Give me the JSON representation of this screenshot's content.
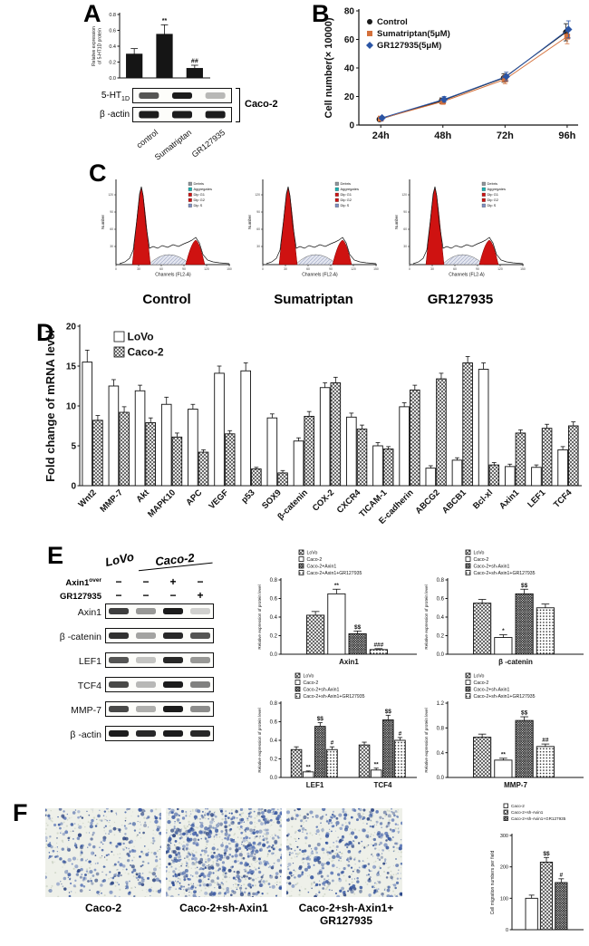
{
  "figure": {
    "background": "#ffffff"
  },
  "panel_labels": {
    "a": "A",
    "b": "B",
    "c": "C",
    "d": "D",
    "e": "E",
    "f": "F"
  },
  "colors": {
    "bar_fill": "#151515",
    "flow_peak_red": "#cf1211",
    "sumatriptan_orange": "#d4703a",
    "migration_blue": "#33549e"
  },
  "panelA": {
    "blot_rows": [
      {
        "name": "5-HT",
        "sub": "1D"
      },
      {
        "name": "β -actin",
        "sub": ""
      }
    ],
    "cell_line": "Caco-2",
    "lanes": [
      "control",
      "Sumatriptan",
      "GR127935"
    ]
  },
  "panelC": {
    "group_labels": [
      "Control",
      "Sumatriptan",
      "GR127935"
    ]
  },
  "panelE": {
    "col_headers": [
      "LoVo",
      "Caco-2"
    ],
    "condition_rows": [
      {
        "label": "Axin1",
        "sup": "over",
        "signs": [
          "−",
          "−",
          "+",
          "−"
        ]
      },
      {
        "label": "GR127935",
        "sup": "",
        "signs": [
          "−",
          "−",
          "−",
          "+"
        ]
      }
    ],
    "blot_rows": [
      "Axin1",
      "β -catenin",
      "LEF1",
      "TCF4",
      "MMP-7",
      "β -actin"
    ]
  },
  "panelF": {
    "image_labels": [
      "Caco-2",
      "Caco-2+sh-Axin1"
    ],
    "image_label3_lines": [
      "Caco-2+sh-Axin1+",
      "GR127935"
    ]
  },
  "chart_data": [
    {
      "id": "chartA",
      "type": "bar",
      "ylabel": "Relative expression\nof 5-HT1D protein",
      "ylim": [
        0,
        0.8
      ],
      "yticks": [
        0,
        0.2,
        0.4,
        0.6,
        0.8
      ],
      "ytick_labels": [
        "0.0",
        "0.2",
        "0.4",
        "0.6",
        "0.8"
      ],
      "categories": [
        "control",
        "Sumatriptan",
        "GR127935"
      ],
      "values": [
        0.3,
        0.55,
        0.12
      ],
      "errors": [
        0.07,
        0.12,
        0.04
      ],
      "annotations": [
        "",
        "**",
        "##"
      ],
      "bar_styles": [
        "solid",
        "solid",
        "solid"
      ]
    },
    {
      "id": "chartB",
      "type": "line",
      "ylabel": "Cell number(× 10000)",
      "ylim": [
        0,
        80
      ],
      "yticks": [
        0,
        20,
        40,
        60,
        80
      ],
      "ytick_labels": [
        "0",
        "20",
        "40",
        "60",
        "80"
      ],
      "x_labels": [
        "24h",
        "48h",
        "72h",
        "96h"
      ],
      "series": [
        {
          "name": "Control",
          "marker": "circle",
          "color": "#1a1a1a",
          "values": [
            4,
            17,
            33,
            65
          ],
          "errors": [
            1,
            2,
            3,
            6
          ]
        },
        {
          "name": "Sumatriptan(5μM)",
          "marker": "square",
          "color": "#d4703a",
          "values": [
            4.5,
            16.5,
            32,
            62
          ],
          "errors": [
            1,
            2,
            3,
            5
          ]
        },
        {
          "name": "GR127935(5μM)",
          "marker": "diamond",
          "color": "#2b55a5",
          "values": [
            5,
            18,
            34,
            67
          ],
          "errors": [
            1,
            2,
            3,
            6
          ]
        }
      ]
    },
    {
      "id": "flow",
      "type": "histogram",
      "plots": [
        "Control",
        "Sumatriptan",
        "GR127935"
      ],
      "xlabel": "Channels (FL2-A)",
      "ylabel": "Number",
      "legend": [
        "Debris",
        "Aggregates",
        "Dip G1",
        "Dip G2",
        "Dip S"
      ]
    },
    {
      "id": "chartD",
      "type": "bar",
      "ylabel": "Fold change of mRNA level",
      "ylim": [
        0,
        20
      ],
      "yticks": [
        0,
        5,
        10,
        15,
        20
      ],
      "ytick_labels": [
        "0",
        "5",
        "10",
        "15",
        "20"
      ],
      "legend_pos": "top-left",
      "categories": [
        "Wnt2",
        "MMP-7",
        "Akt",
        "MAPK10",
        "APC",
        "VEGF",
        "p53",
        "SOX9",
        "β-catenin",
        "COX-2",
        "CXCR4",
        "TICAM-1",
        "E-cadherin",
        "ABCG2",
        "ABCB1",
        "Bcl-xl",
        "Axin1",
        "LEF1",
        "TCF4"
      ],
      "series": [
        {
          "name": "LoVo",
          "style": "open",
          "values": [
            15.5,
            12.5,
            11.9,
            10.2,
            9.6,
            14.1,
            14.4,
            8.5,
            5.6,
            12.3,
            8.6,
            5.0,
            9.9,
            2.2,
            3.2,
            14.6,
            2.4,
            2.3,
            4.5
          ],
          "errors": [
            1.5,
            0.8,
            0.7,
            0.9,
            0.6,
            0.9,
            1.0,
            0.5,
            0.4,
            0.6,
            0.5,
            0.4,
            0.5,
            0.3,
            0.3,
            0.8,
            0.3,
            0.3,
            0.4
          ]
        },
        {
          "name": "Caco-2",
          "style": "hatch",
          "values": [
            8.2,
            9.2,
            7.9,
            6.1,
            4.2,
            6.5,
            2.1,
            1.6,
            8.7,
            12.9,
            7.1,
            4.6,
            12.0,
            13.4,
            15.4,
            2.6,
            6.6,
            7.2,
            7.5
          ],
          "errors": [
            0.6,
            0.7,
            0.6,
            0.5,
            0.3,
            0.4,
            0.2,
            0.3,
            0.6,
            0.7,
            0.5,
            0.3,
            0.6,
            0.7,
            0.8,
            0.3,
            0.4,
            0.5,
            0.5
          ]
        }
      ]
    },
    {
      "id": "chartE1",
      "type": "bar",
      "categories": [
        "Axin1"
      ],
      "ylabel": "Relative expression of protein level",
      "ylim": [
        0,
        0.8
      ],
      "yticks": [
        0,
        0.2,
        0.4,
        0.6,
        0.8
      ],
      "ytick_labels": [
        "0.0",
        "0.2",
        "0.4",
        "0.6",
        "0.8"
      ],
      "series": [
        {
          "name": "LoVo",
          "style": "hatch",
          "values": [
            0.42
          ],
          "errors": [
            0.04
          ],
          "annotations": [
            ""
          ]
        },
        {
          "name": "Caco-2",
          "style": "open",
          "values": [
            0.65
          ],
          "errors": [
            0.05
          ],
          "annotations": [
            "**"
          ]
        },
        {
          "name": "Caco-2+Axin1",
          "style": "hatch2",
          "values": [
            0.22
          ],
          "errors": [
            0.03
          ],
          "annotations": [
            "$$"
          ]
        },
        {
          "name": "Caco-2+Axin1+GR127935",
          "style": "dots",
          "values": [
            0.05
          ],
          "errors": [
            0.01
          ],
          "annotations": [
            "###"
          ]
        }
      ]
    },
    {
      "id": "chartE2",
      "type": "bar",
      "categories": [
        "β -catenin"
      ],
      "ylabel": "Relative expression of protein level",
      "ylim": [
        0,
        0.8
      ],
      "yticks": [
        0,
        0.2,
        0.4,
        0.6,
        0.8
      ],
      "ytick_labels": [
        "0.0",
        "0.2",
        "0.4",
        "0.6",
        "0.8"
      ],
      "series": [
        {
          "name": "LoVo",
          "style": "hatch",
          "values": [
            0.55
          ],
          "errors": [
            0.04
          ],
          "annotations": [
            ""
          ]
        },
        {
          "name": "Caco-2",
          "style": "open",
          "values": [
            0.18
          ],
          "errors": [
            0.03
          ],
          "annotations": [
            "*"
          ]
        },
        {
          "name": "Caco-2+sh-Axin1",
          "style": "hatch2",
          "values": [
            0.65
          ],
          "errors": [
            0.05
          ],
          "annotations": [
            "$$"
          ]
        },
        {
          "name": "Caco-2+sh-Axin1+GR127935",
          "style": "dots",
          "values": [
            0.5
          ],
          "errors": [
            0.04
          ],
          "annotations": [
            ""
          ]
        }
      ]
    },
    {
      "id": "chartE3",
      "type": "bar",
      "categories": [
        "LEF1",
        "TCF4"
      ],
      "ylabel": "Relative expression of protein level",
      "ylim": [
        0,
        0.8
      ],
      "yticks": [
        0,
        0.2,
        0.4,
        0.6,
        0.8
      ],
      "ytick_labels": [
        "0.0",
        "0.2",
        "0.4",
        "0.6",
        "0.8"
      ],
      "series": [
        {
          "name": "LoVo",
          "style": "hatch",
          "values": [
            0.3,
            0.35
          ],
          "errors": [
            0.03,
            0.03
          ],
          "annotations": [
            "",
            ""
          ]
        },
        {
          "name": "Caco-2",
          "style": "open",
          "values": [
            0.06,
            0.08
          ],
          "errors": [
            0.01,
            0.02
          ],
          "annotations": [
            "**",
            "**"
          ]
        },
        {
          "name": "Caco-2+sh-Axin1",
          "style": "hatch2",
          "values": [
            0.55,
            0.62
          ],
          "errors": [
            0.04,
            0.05
          ],
          "annotations": [
            "$$",
            "$$"
          ]
        },
        {
          "name": "Caco-2+sh-Axin1+GR127935",
          "style": "dots",
          "values": [
            0.3,
            0.4
          ],
          "errors": [
            0.03,
            0.03
          ],
          "annotations": [
            "#",
            "#"
          ]
        }
      ]
    },
    {
      "id": "chartE4",
      "type": "bar",
      "categories": [
        "MMP-7"
      ],
      "ylabel": "Relative expression of protein level",
      "ylim": [
        0,
        1.2
      ],
      "yticks": [
        0,
        0.4,
        0.8,
        1.2
      ],
      "ytick_labels": [
        "0.0",
        "0.4",
        "0.8",
        "1.2"
      ],
      "series": [
        {
          "name": "LoVo",
          "style": "hatch",
          "values": [
            0.65
          ],
          "errors": [
            0.05
          ],
          "annotations": [
            ""
          ]
        },
        {
          "name": "Caco-2",
          "style": "open",
          "values": [
            0.28
          ],
          "errors": [
            0.03
          ],
          "annotations": [
            "**"
          ]
        },
        {
          "name": "Caco-2+sh-Axin1",
          "style": "hatch2",
          "values": [
            0.92
          ],
          "errors": [
            0.06
          ],
          "annotations": [
            "$$"
          ]
        },
        {
          "name": "Caco-2+sh-Axin1+GR127935",
          "style": "dots",
          "values": [
            0.5
          ],
          "errors": [
            0.04
          ],
          "annotations": [
            "##"
          ]
        }
      ]
    },
    {
      "id": "chartF",
      "type": "bar",
      "categories": [
        ""
      ],
      "ylabel": "Cell migration numbers per field",
      "ylim": [
        0,
        300
      ],
      "yticks": [
        0,
        100,
        200,
        300
      ],
      "ytick_labels": [
        "0",
        "100",
        "200",
        "300"
      ],
      "series": [
        {
          "name": "Caco-2",
          "style": "open",
          "values": [
            100
          ],
          "errors": [
            10
          ],
          "annotations": [
            ""
          ]
        },
        {
          "name": "Caco-2+sh-Axin1",
          "style": "hatch",
          "values": [
            215
          ],
          "errors": [
            15
          ],
          "annotations": [
            "$$"
          ]
        },
        {
          "name": "Caco-2+sh-Axin1+GR127935",
          "style": "hatch2",
          "values": [
            150
          ],
          "errors": [
            12
          ],
          "annotations": [
            "#"
          ]
        }
      ]
    }
  ]
}
